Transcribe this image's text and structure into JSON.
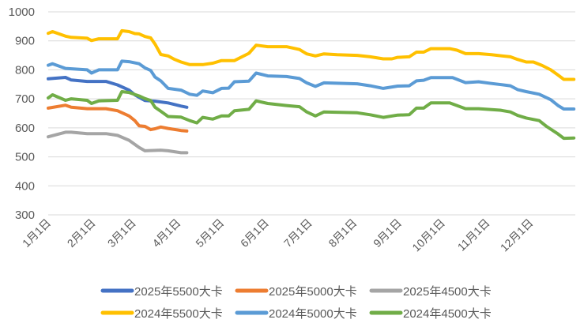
{
  "chart_data": {
    "type": "line",
    "title": "",
    "xlabel": "",
    "ylabel": "",
    "x_unit": "day-of-year",
    "ylim": [
      300,
      1000
    ],
    "yticks": [
      1000,
      900,
      800,
      700,
      600,
      500,
      400,
      300
    ],
    "xtick_labels": [
      "1月1日",
      "2月1日",
      "3月1日",
      "4月1日",
      "5月1日",
      "6月1日",
      "7月1日",
      "8月1日",
      "9月1日",
      "10月1日",
      "11月1日",
      "12月1日"
    ],
    "xtick_days": [
      0,
      31,
      59,
      90,
      120,
      151,
      181,
      212,
      243,
      273,
      304,
      334
    ],
    "grid": "horizontal",
    "legend_position": "bottom",
    "series": [
      {
        "name": "2025年5500大卡",
        "color": "#4472c4",
        "x": [
          0,
          12,
          16,
          27,
          40,
          48,
          56,
          60,
          63,
          67,
          74,
          83,
          92,
          96
        ],
        "y": [
          769,
          774,
          765,
          760,
          760,
          748,
          730,
          714,
          705,
          694,
          692,
          686,
          675,
          671
        ]
      },
      {
        "name": "2025年5000大卡",
        "color": "#ed7d31",
        "x": [
          0,
          12,
          16,
          27,
          40,
          48,
          56,
          60,
          63,
          67,
          71,
          74,
          78,
          83,
          92,
          96
        ],
        "y": [
          668,
          678,
          671,
          666,
          666,
          659,
          641,
          625,
          607,
          605,
          594,
          597,
          603,
          598,
          591,
          589
        ]
      },
      {
        "name": "2025年4500大卡",
        "color": "#a5a5a5",
        "x": [
          0,
          12,
          16,
          27,
          40,
          48,
          56,
          63,
          67,
          78,
          83,
          92,
          96
        ],
        "y": [
          569,
          585,
          585,
          580,
          580,
          574,
          557,
          532,
          521,
          523,
          521,
          514,
          514
        ]
      },
      {
        "name": "2024年5500大卡",
        "color": "#ffc000",
        "x": [
          0,
          3,
          12,
          16,
          27,
          30,
          35,
          48,
          51,
          56,
          60,
          63,
          67,
          71,
          74,
          78,
          83,
          87,
          92,
          98,
          103,
          107,
          114,
          120,
          125,
          129,
          139,
          144,
          152,
          165,
          174,
          179,
          185,
          191,
          200,
          214,
          223,
          232,
          238,
          242,
          250,
          255,
          260,
          265,
          278,
          283,
          289,
          298,
          307,
          320,
          325,
          331,
          336,
          342,
          348,
          353,
          357,
          364
        ],
        "y": [
          926,
          932,
          916,
          912,
          909,
          901,
          907,
          907,
          935,
          932,
          925,
          924,
          915,
          910,
          889,
          853,
          848,
          837,
          827,
          818,
          818,
          818,
          823,
          832,
          832,
          832,
          857,
          885,
          880,
          880,
          870,
          855,
          848,
          855,
          852,
          850,
          845,
          838,
          838,
          843,
          845,
          861,
          861,
          873,
          873,
          868,
          856,
          856,
          852,
          845,
          836,
          827,
          827,
          815,
          800,
          782,
          767,
          767
        ]
      },
      {
        "name": "2024年5000大卡",
        "color": "#5b9bd5",
        "x": [
          0,
          3,
          12,
          27,
          30,
          35,
          48,
          51,
          56,
          63,
          67,
          71,
          74,
          78,
          83,
          92,
          98,
          103,
          107,
          114,
          120,
          125,
          129,
          139,
          144,
          152,
          165,
          174,
          179,
          185,
          191,
          214,
          223,
          232,
          242,
          250,
          255,
          260,
          265,
          280,
          289,
          298,
          307,
          320,
          325,
          331,
          340,
          348,
          353,
          357,
          364
        ],
        "y": [
          816,
          821,
          805,
          800,
          789,
          800,
          800,
          830,
          828,
          821,
          807,
          798,
          775,
          762,
          736,
          730,
          716,
          712,
          727,
          721,
          736,
          737,
          759,
          761,
          789,
          779,
          777,
          770,
          755,
          743,
          755,
          752,
          745,
          736,
          744,
          745,
          762,
          764,
          773,
          773,
          756,
          759,
          753,
          745,
          732,
          725,
          716,
          697,
          677,
          665,
          665
        ]
      },
      {
        "name": "2024年4500大卡",
        "color": "#70ad47",
        "x": [
          0,
          3,
          12,
          16,
          27,
          30,
          35,
          48,
          51,
          56,
          63,
          67,
          71,
          74,
          78,
          83,
          92,
          98,
          103,
          107,
          114,
          120,
          125,
          129,
          139,
          144,
          152,
          165,
          174,
          179,
          185,
          191,
          214,
          223,
          232,
          242,
          250,
          255,
          260,
          265,
          278,
          289,
          298,
          313,
          320,
          325,
          331,
          340,
          345,
          353,
          357,
          364
        ],
        "y": [
          703,
          714,
          695,
          700,
          695,
          684,
          693,
          695,
          725,
          722,
          710,
          701,
          694,
          671,
          657,
          639,
          637,
          625,
          617,
          636,
          630,
          641,
          641,
          659,
          664,
          693,
          684,
          677,
          673,
          655,
          641,
          655,
          652,
          645,
          636,
          644,
          645,
          668,
          668,
          686,
          686,
          666,
          666,
          661,
          655,
          643,
          634,
          625,
          605,
          579,
          564,
          565
        ]
      }
    ]
  }
}
